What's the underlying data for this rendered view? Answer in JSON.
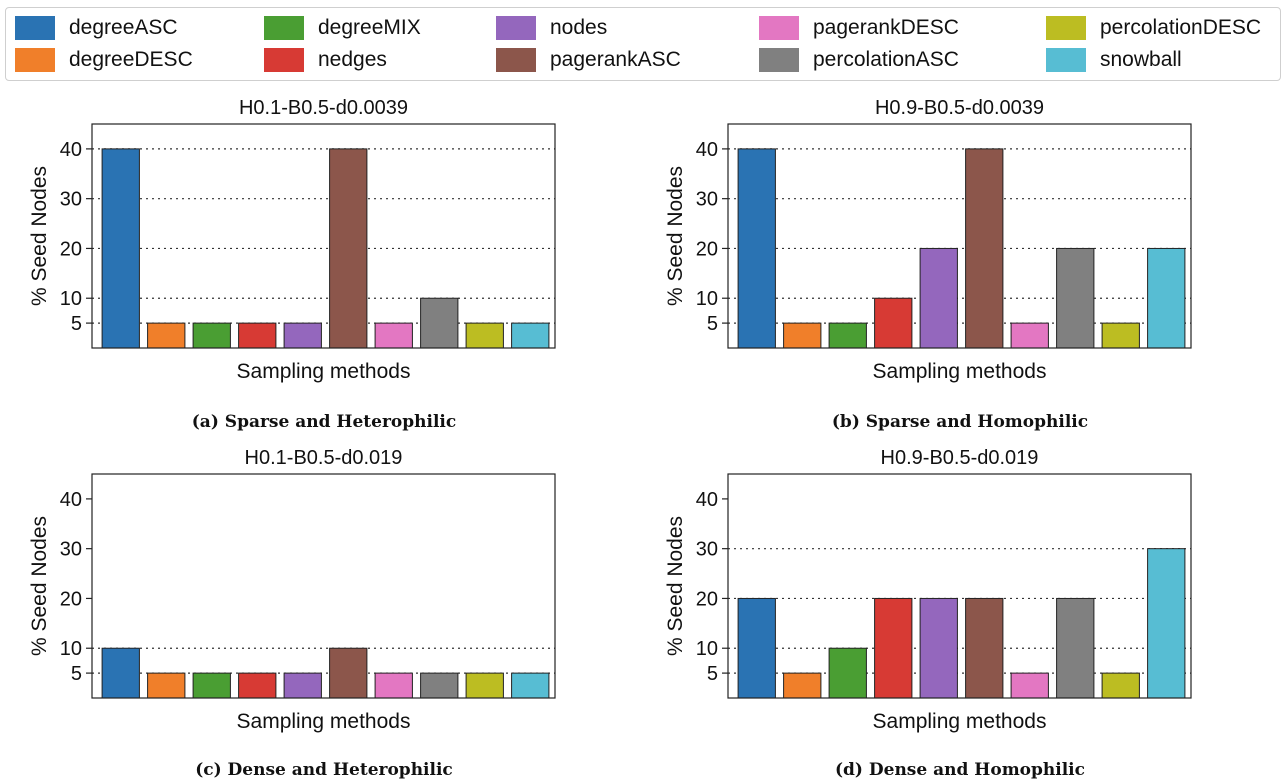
{
  "legend": {
    "items": [
      {
        "label": "degreeASC",
        "color": "#2a73b3"
      },
      {
        "label": "degreeDESC",
        "color": "#f07f2a"
      },
      {
        "label": "degreeMIX",
        "color": "#4a9e33"
      },
      {
        "label": "nedges",
        "color": "#d73a34"
      },
      {
        "label": "nodes",
        "color": "#9467bd"
      },
      {
        "label": "pagerankASC",
        "color": "#8c564b"
      },
      {
        "label": "pagerankDESC",
        "color": "#e377c2"
      },
      {
        "label": "percolationASC",
        "color": "#808080"
      },
      {
        "label": "percolationDESC",
        "color": "#bcbd22"
      },
      {
        "label": "snowball",
        "color": "#57bdd3"
      }
    ]
  },
  "chart_data": [
    {
      "type": "bar",
      "title": "H0.1-B0.5-d0.0039",
      "caption": "(a) Sparse and Heterophilic",
      "xlabel": "Sampling methods",
      "ylabel": "% Seed Nodes",
      "yticks": [
        5,
        10,
        20,
        30,
        40
      ],
      "ylim": [
        0,
        45
      ],
      "categories": [
        "degreeASC",
        "degreeDESC",
        "degreeMIX",
        "nedges",
        "nodes",
        "pagerankASC",
        "pagerankDESC",
        "percolationASC",
        "percolationDESC",
        "snowball"
      ],
      "values": [
        40,
        5,
        5,
        5,
        5,
        40,
        5,
        10,
        5,
        5
      ]
    },
    {
      "type": "bar",
      "title": "H0.9-B0.5-d0.0039",
      "caption": "(b) Sparse and Homophilic",
      "xlabel": "Sampling methods",
      "ylabel": "% Seed Nodes",
      "yticks": [
        5,
        10,
        20,
        30,
        40
      ],
      "ylim": [
        0,
        45
      ],
      "categories": [
        "degreeASC",
        "degreeDESC",
        "degreeMIX",
        "nedges",
        "nodes",
        "pagerankASC",
        "pagerankDESC",
        "percolationASC",
        "percolationDESC",
        "snowball"
      ],
      "values": [
        40,
        5,
        5,
        10,
        20,
        40,
        5,
        20,
        5,
        20
      ]
    },
    {
      "type": "bar",
      "title": "H0.1-B0.5-d0.019",
      "caption": "(c) Dense and Heterophilic",
      "xlabel": "Sampling methods",
      "ylabel": "% Seed Nodes",
      "yticks": [
        5,
        10,
        20,
        30,
        40
      ],
      "ylim": [
        0,
        45
      ],
      "categories": [
        "degreeASC",
        "degreeDESC",
        "degreeMIX",
        "nedges",
        "nodes",
        "pagerankASC",
        "pagerankDESC",
        "percolationASC",
        "percolationDESC",
        "snowball"
      ],
      "values": [
        10,
        5,
        5,
        5,
        5,
        10,
        5,
        5,
        5,
        5
      ]
    },
    {
      "type": "bar",
      "title": "H0.9-B0.5-d0.019",
      "caption": "(d) Dense and Homophilic",
      "xlabel": "Sampling methods",
      "ylabel": "% Seed Nodes",
      "yticks": [
        5,
        10,
        20,
        30,
        40
      ],
      "ylim": [
        0,
        45
      ],
      "categories": [
        "degreeASC",
        "degreeDESC",
        "degreeMIX",
        "nedges",
        "nodes",
        "pagerankASC",
        "pagerankDESC",
        "percolationASC",
        "percolationDESC",
        "snowball"
      ],
      "values": [
        20,
        5,
        10,
        20,
        20,
        20,
        5,
        20,
        5,
        30
      ]
    }
  ]
}
